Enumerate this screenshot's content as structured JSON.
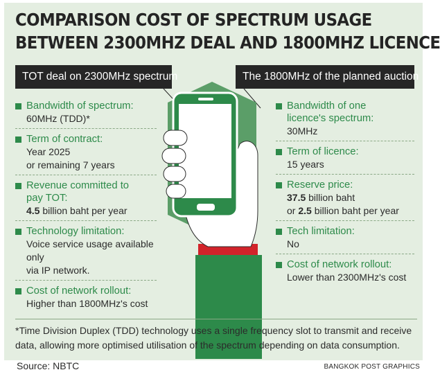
{
  "title": {
    "line1": "COMPARISON COST OF SPECTRUM USAGE",
    "line2": "BETWEEN 2300MHZ DEAL AND 1800MHZ LICENCE"
  },
  "left": {
    "header": "TOT deal on 2300MHz spectrum",
    "items": [
      {
        "label": "Bandwidth of spectrum:",
        "value": "60MHz (TDD)*"
      },
      {
        "label": "Term of contract:",
        "value": "Year 2025\nor remaining 7 years"
      },
      {
        "label": "Revenue committed to\npay TOT:",
        "value_bold": "4.5",
        "value_rest": " billion baht per year"
      },
      {
        "label": "Technology  limitation:",
        "value": "Voice service usage available only\nvia IP network."
      },
      {
        "label": "Cost of network rollout:",
        "value": "Higher than 1800MHz's cost"
      }
    ]
  },
  "right": {
    "header": "The 1800MHz of the planned auction",
    "items": [
      {
        "label": "Bandwidth of one\nlicence's spectrum:",
        "value": "30MHz"
      },
      {
        "label": "Term of licence:",
        "value": "15 years"
      },
      {
        "label": "Reserve price:",
        "value_bold": "37.5",
        "value_rest": " billion baht",
        "value2_prefix": "or ",
        "value2_bold": "2.5",
        "value2_rest": " billion baht per year"
      },
      {
        "label": "Tech limitation:",
        "value": "No"
      },
      {
        "label": "Cost of network rollout:",
        "value": "Lower than 2300MHz's cost"
      }
    ]
  },
  "footnote": "*Time Division Duplex (TDD) technology uses a single frequency slot to transmit and receive data, allowing more optimised utilisation of the spectrum depending on data consumption.",
  "source": "Source: NBTC",
  "credit": "BANGKOK POST GRAPHICS",
  "colors": {
    "panel_bg": "#e4eee1",
    "accent_green": "#2d8a4a",
    "header_bg": "#262626",
    "sleeve_red": "#d2232a"
  },
  "icons": [
    "square-bullet-icon",
    "smartphone-icon",
    "hand-icon",
    "hexagon-shape"
  ]
}
